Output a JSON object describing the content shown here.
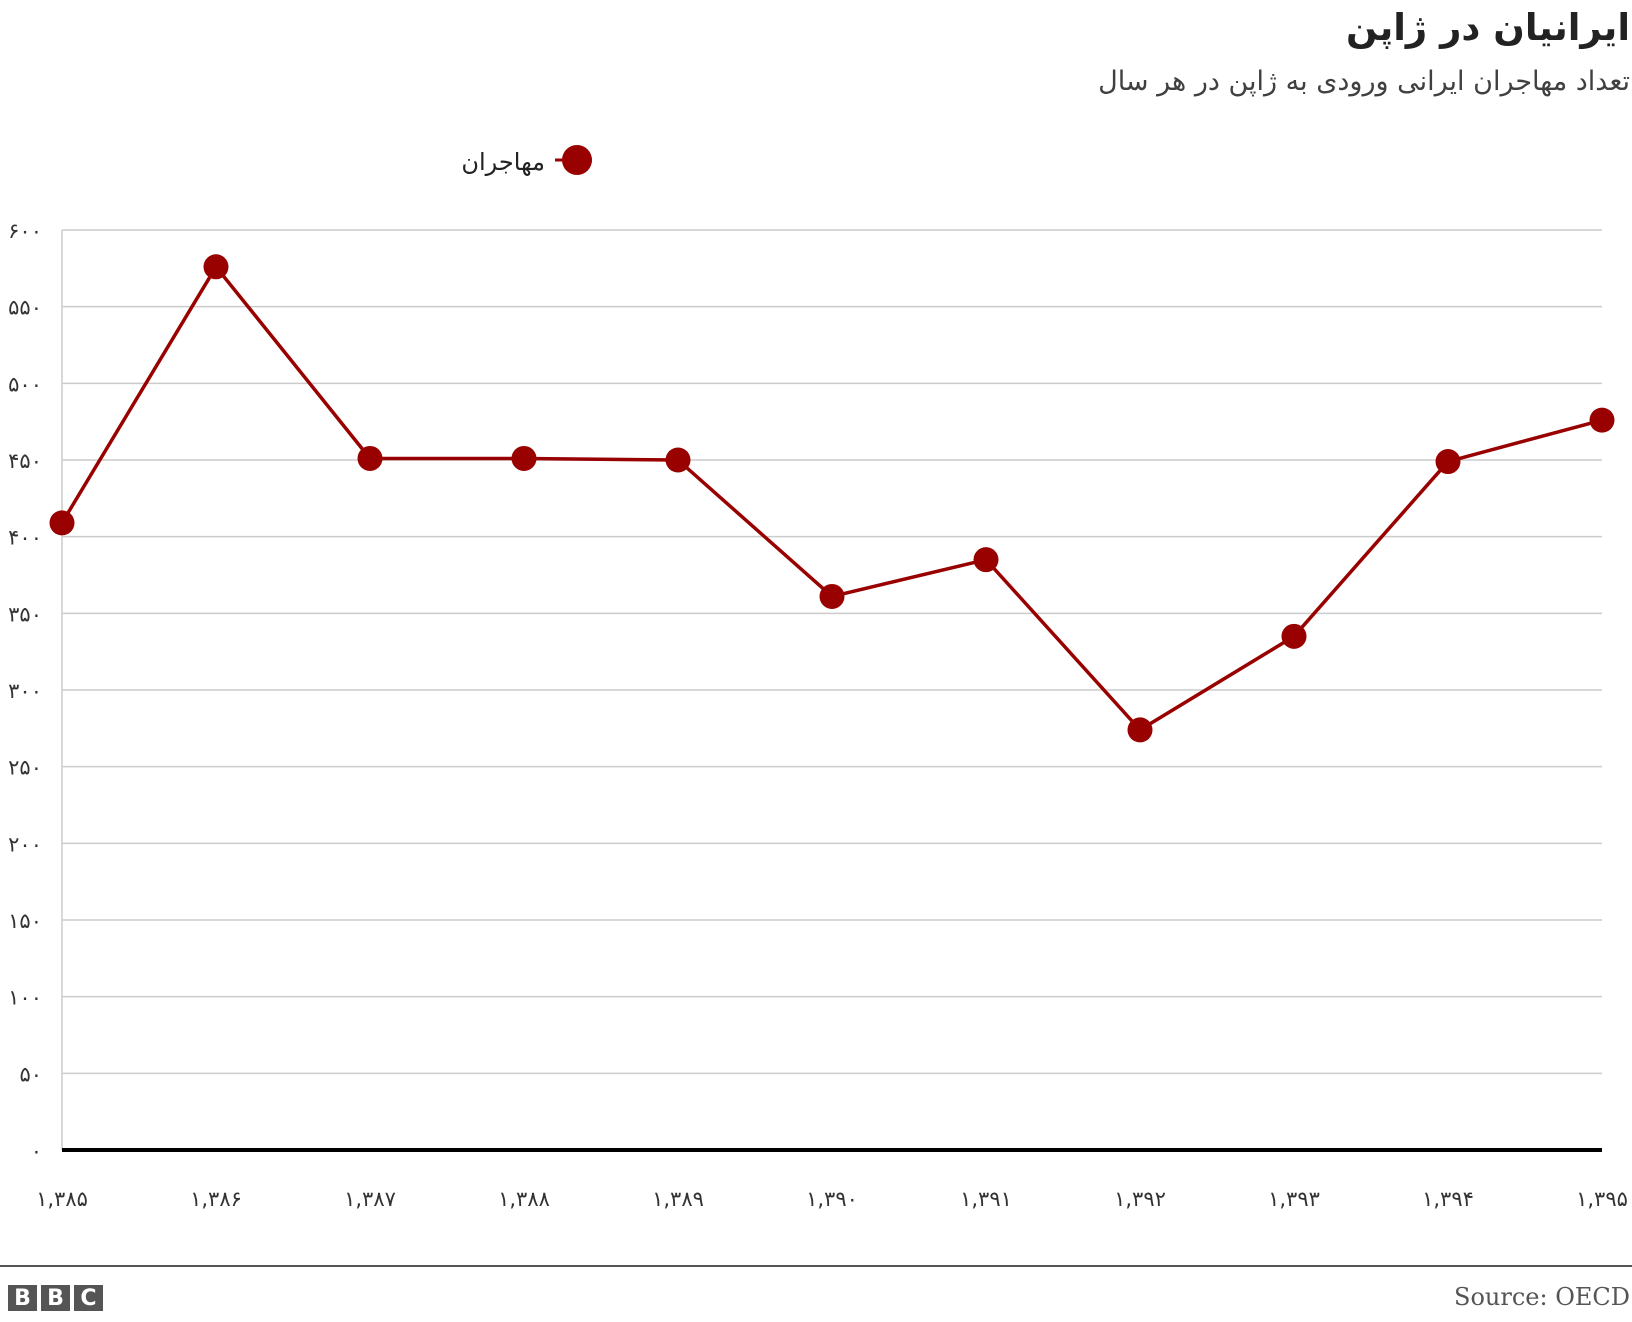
{
  "title": "ایرانیان در ژاپن",
  "subtitle": "تعداد مهاجران ایرانی ورودی به ژاپن در هر سال",
  "source": "Source: OECD",
  "logo_letters": [
    "B",
    "B",
    "C"
  ],
  "colors": {
    "series": "#990000",
    "grid": "#cccccc",
    "baseline": "#000000"
  },
  "chart_data": {
    "type": "line",
    "title": "ایرانیان در ژاپن",
    "subtitle": "تعداد مهاجران ایرانی ورودی به ژاپن در هر سال",
    "x": [
      "۱,۳۸۵",
      "۱,۳۸۶",
      "۱,۳۸۷",
      "۱,۳۸۸",
      "۱,۳۸۹",
      "۱,۳۹۰",
      "۱,۳۹۱",
      "۱,۳۹۲",
      "۱,۳۹۳",
      "۱,۳۹۴",
      "۱,۳۹۵"
    ],
    "series": [
      {
        "name": "مهاجران",
        "values": [
          409,
          576,
          451,
          451,
          450,
          361,
          385,
          274,
          335,
          449,
          476
        ]
      }
    ],
    "ylim": [
      0,
      600
    ],
    "yticks": [
      0,
      50,
      100,
      150,
      200,
      250,
      300,
      350,
      400,
      450,
      500,
      550,
      600
    ],
    "ytick_labels": [
      "۰",
      "۵۰",
      "۱۰۰",
      "۱۵۰",
      "۲۰۰",
      "۲۵۰",
      "۳۰۰",
      "۳۵۰",
      "۴۰۰",
      "۴۵۰",
      "۵۰۰",
      "۵۵۰",
      "۶۰۰"
    ],
    "xlabel": "",
    "ylabel": "",
    "grid": true,
    "legend": "top-center"
  }
}
